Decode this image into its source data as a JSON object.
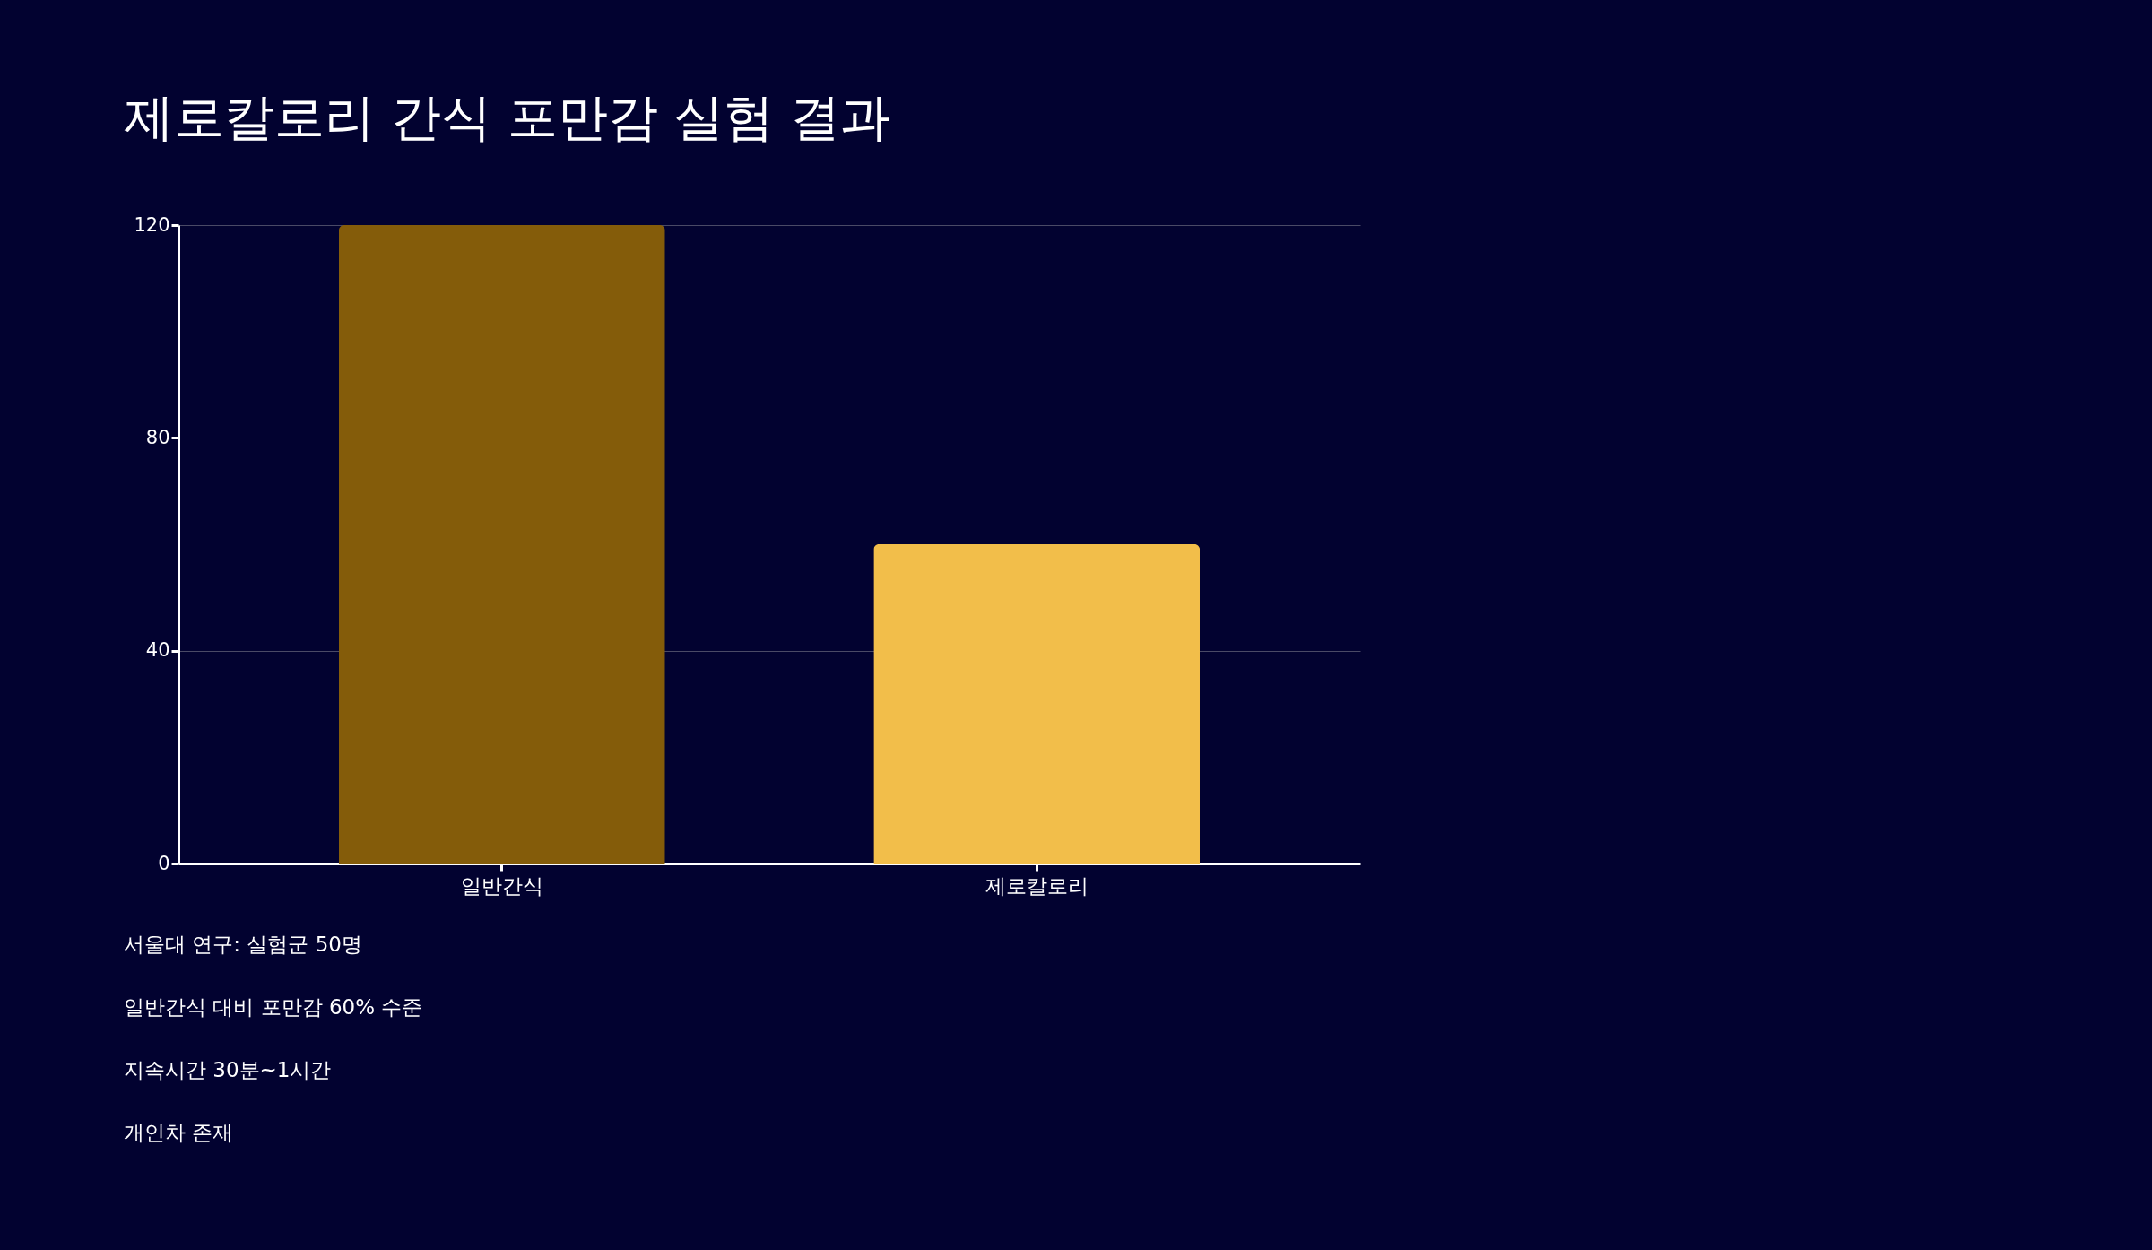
{
  "chart_data": {
    "type": "bar",
    "title": "제로칼로리 간식 포만감 실험 결과",
    "categories": [
      "일반간식",
      "제로칼로리"
    ],
    "values": [
      120,
      60
    ],
    "colors": [
      "#845c0a",
      "#f2be4a"
    ],
    "ylim": [
      0,
      120
    ],
    "yticks": [
      0,
      40,
      80,
      120
    ],
    "grid": "y",
    "annotations": [
      "서울대 연구: 실험군 50명",
      "일반간식 대비 포만감 60% 수준",
      "지속시간 30분~1시간",
      "개인차 존재"
    ]
  }
}
